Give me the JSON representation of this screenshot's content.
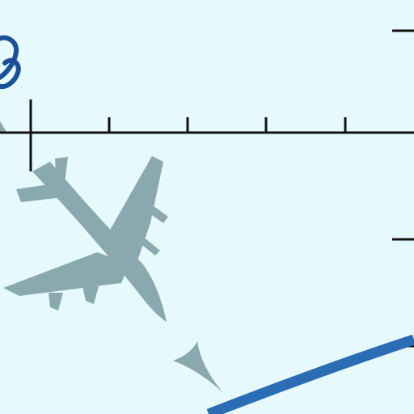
{
  "colors": {
    "background": "#e6f9fc",
    "axis": "#111111",
    "aircraft": "#8aa9ae",
    "flight_path": "#2a6db4",
    "logo_mark": "#1a4f9a"
  },
  "icons": {
    "aircraft": "airplane-silhouette-icon",
    "heading_arrow": "arrowhead-icon",
    "logo_mark": "logo-fragment-icon"
  }
}
